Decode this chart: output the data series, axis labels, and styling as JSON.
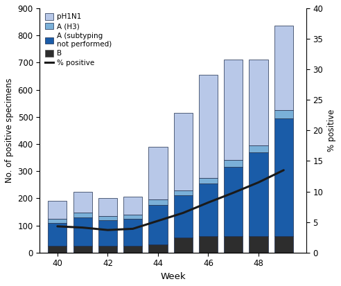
{
  "weeks": [
    40,
    41,
    42,
    43,
    44,
    45,
    46,
    47,
    48,
    49
  ],
  "pH1N1": [
    65,
    77,
    65,
    65,
    195,
    285,
    380,
    370,
    315,
    310
  ],
  "A_H3": [
    15,
    18,
    15,
    15,
    20,
    20,
    20,
    25,
    25,
    30
  ],
  "A_nosub": [
    85,
    105,
    95,
    100,
    145,
    155,
    195,
    255,
    310,
    435
  ],
  "B": [
    25,
    25,
    25,
    25,
    30,
    55,
    60,
    60,
    60,
    60
  ],
  "pct_positive": [
    4.3,
    4.1,
    3.7,
    3.9,
    5.2,
    6.5,
    8.2,
    9.8,
    11.5,
    13.5
  ],
  "ylim_left": [
    0,
    900
  ],
  "ylim_right": [
    0,
    40
  ],
  "color_pH1N1": "#b8c8e8",
  "color_AH3": "#7ab0d8",
  "color_Anosub": "#1a5ca8",
  "color_B": "#2d2d2d",
  "color_line": "#1a1a1a",
  "xlabel": "Week",
  "ylabel_left": "No. of positive specimens",
  "ylabel_right": "% positive",
  "xticks": [
    40,
    42,
    44,
    46,
    48
  ],
  "yticks_left": [
    0,
    100,
    200,
    300,
    400,
    500,
    600,
    700,
    800,
    900
  ],
  "yticks_right": [
    0,
    5,
    10,
    15,
    20,
    25,
    30,
    35,
    40
  ],
  "bar_width": 0.75,
  "figsize": [
    4.92,
    4.13
  ],
  "dpi": 100
}
